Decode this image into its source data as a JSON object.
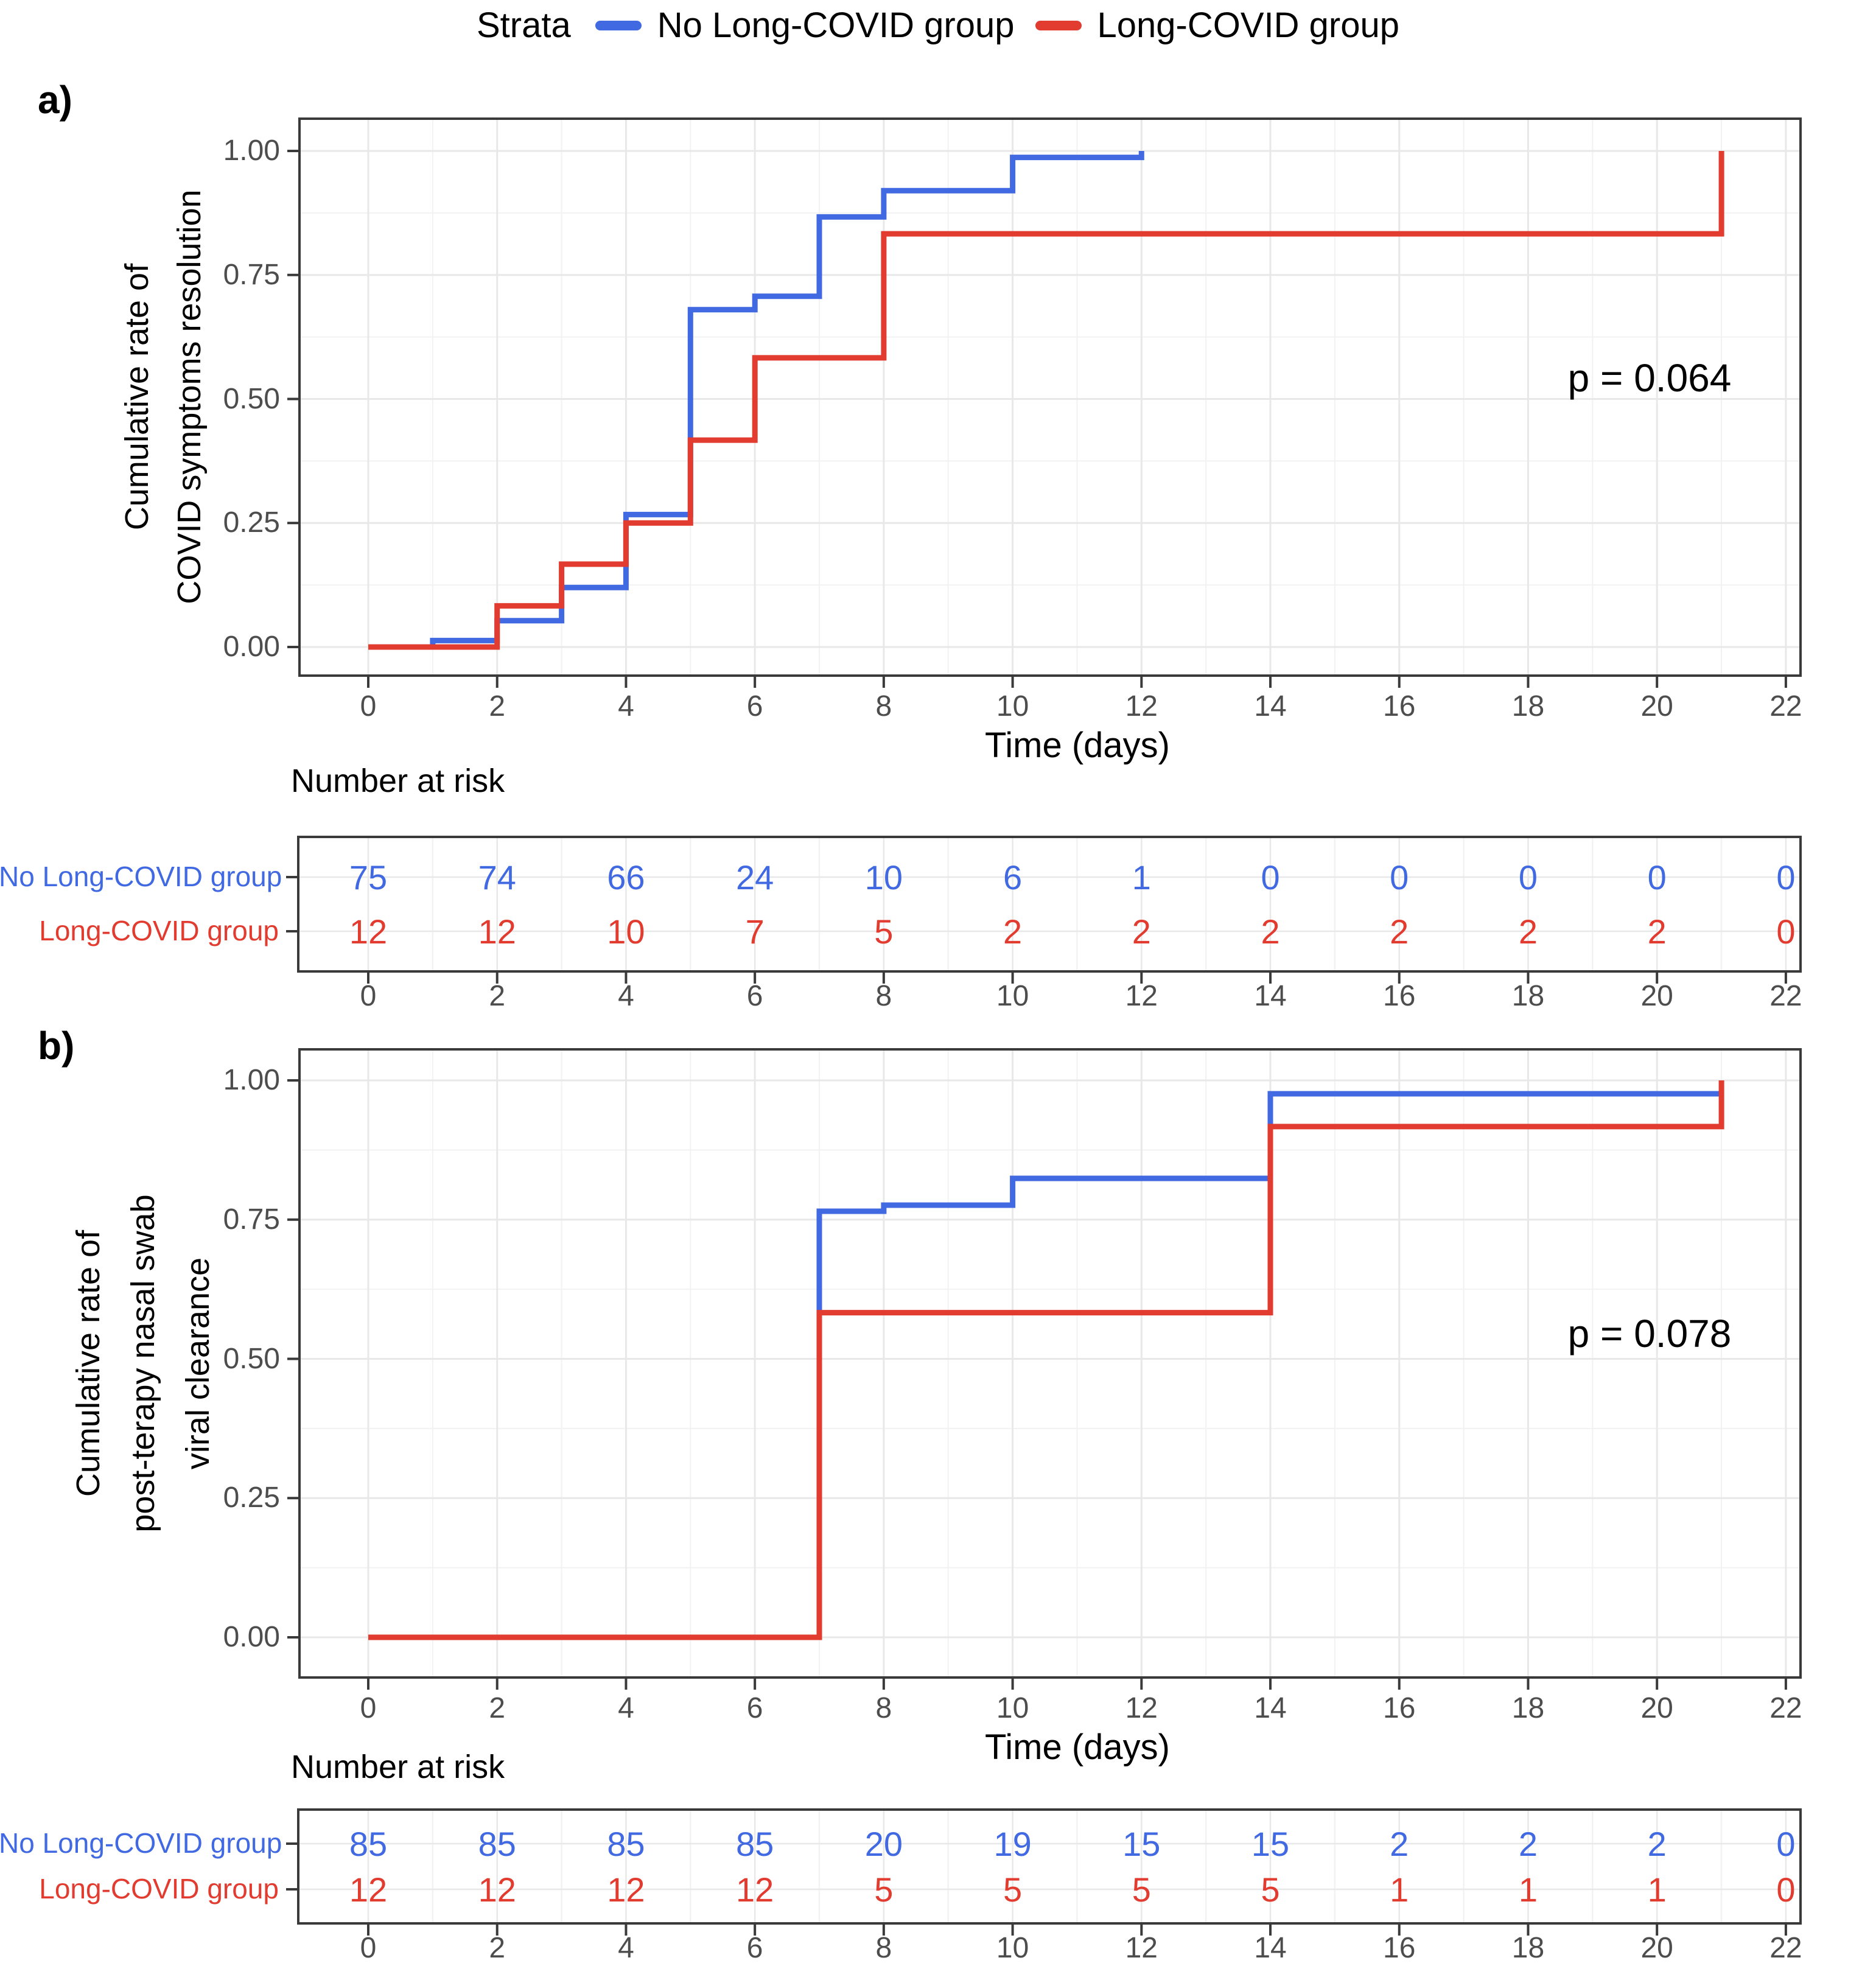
{
  "legend": {
    "title": "Strata",
    "items": [
      {
        "label": "No Long-COVID group",
        "color": "#4169E1"
      },
      {
        "label": "Long-COVID group",
        "color": "#E23B2F"
      }
    ]
  },
  "colors": {
    "blue": "#4169E1",
    "red": "#E23B2F",
    "grid_major": "#E8E8E8",
    "grid_minor": "#F2F2F2",
    "panel_border": "#3A3A3A",
    "tick_text": "#4D4D4D"
  },
  "chart_data": [
    {
      "type": "line",
      "style": "step",
      "panel_label": "a)",
      "ylabel_lines": [
        "Cumulative rate of",
        "COVID symptoms resolution"
      ],
      "xlabel": "Time (days)",
      "p_value": "p = 0.064",
      "xlim": [
        0,
        22
      ],
      "ylim": [
        0,
        1
      ],
      "x_ticks": [
        0,
        2,
        4,
        6,
        8,
        10,
        12,
        14,
        16,
        18,
        20,
        22
      ],
      "y_ticks": [
        {
          "v": 0,
          "label": "0.00"
        },
        {
          "v": 0.25,
          "label": "0.25"
        },
        {
          "v": 0.5,
          "label": "0.50"
        },
        {
          "v": 0.75,
          "label": "0.75"
        },
        {
          "v": 1,
          "label": "1.00"
        }
      ],
      "grid": true,
      "legend_position": "top",
      "series": [
        {
          "name": "No Long-COVID group",
          "color": "#4169E1",
          "points": [
            [
              0,
              0
            ],
            [
              1,
              0.013
            ],
            [
              2,
              0.053
            ],
            [
              3,
              0.12
            ],
            [
              4,
              0.267
            ],
            [
              5,
              0.68
            ],
            [
              6,
              0.707
            ],
            [
              7,
              0.867
            ],
            [
              8,
              0.92
            ],
            [
              10,
              0.987
            ],
            [
              12,
              1.0
            ]
          ]
        },
        {
          "name": "Long-COVID group",
          "color": "#E23B2F",
          "points": [
            [
              0,
              0
            ],
            [
              2,
              0.083
            ],
            [
              3,
              0.167
            ],
            [
              4,
              0.25
            ],
            [
              5,
              0.417
            ],
            [
              6,
              0.583
            ],
            [
              8,
              0.833
            ],
            [
              21,
              1.0
            ]
          ]
        }
      ],
      "risk_table": {
        "title": "Number at risk",
        "x_ticks": [
          0,
          2,
          4,
          6,
          8,
          10,
          12,
          14,
          16,
          18,
          20,
          22
        ],
        "rows": [
          {
            "label": "No Long-COVID group",
            "color": "#4169E1",
            "values": [
              75,
              74,
              66,
              24,
              10,
              6,
              1,
              0,
              0,
              0,
              0,
              0
            ]
          },
          {
            "label": "Long-COVID group",
            "color": "#E23B2F",
            "values": [
              12,
              12,
              10,
              7,
              5,
              2,
              2,
              2,
              2,
              2,
              2,
              0
            ]
          }
        ]
      }
    },
    {
      "type": "line",
      "style": "step",
      "panel_label": "b)",
      "ylabel_lines": [
        "Cumulative rate of",
        "post-terapy nasal swab",
        "viral clearance"
      ],
      "xlabel": "Time (days)",
      "p_value": "p = 0.078",
      "xlim": [
        0,
        22
      ],
      "ylim": [
        0,
        1
      ],
      "x_ticks": [
        0,
        2,
        4,
        6,
        8,
        10,
        12,
        14,
        16,
        18,
        20,
        22
      ],
      "y_ticks": [
        {
          "v": 0,
          "label": "0.00"
        },
        {
          "v": 0.25,
          "label": "0.25"
        },
        {
          "v": 0.5,
          "label": "0.50"
        },
        {
          "v": 0.75,
          "label": "0.75"
        },
        {
          "v": 1,
          "label": "1.00"
        }
      ],
      "grid": true,
      "legend_position": "top",
      "series": [
        {
          "name": "No Long-COVID group",
          "color": "#4169E1",
          "points": [
            [
              0,
              0
            ],
            [
              7,
              0.765
            ],
            [
              8,
              0.776
            ],
            [
              10,
              0.824
            ],
            [
              14,
              0.976
            ],
            [
              21,
              0.976
            ]
          ]
        },
        {
          "name": "Long-COVID group",
          "color": "#E23B2F",
          "points": [
            [
              0,
              0
            ],
            [
              7,
              0.583
            ],
            [
              14,
              0.917
            ],
            [
              21,
              1.0
            ]
          ]
        }
      ],
      "risk_table": {
        "title": "Number at risk",
        "x_ticks": [
          0,
          2,
          4,
          6,
          8,
          10,
          12,
          14,
          16,
          18,
          20,
          22
        ],
        "rows": [
          {
            "label": "No Long-COVID group",
            "color": "#4169E1",
            "values": [
              85,
              85,
              85,
              85,
              20,
              19,
              15,
              15,
              2,
              2,
              2,
              0
            ]
          },
          {
            "label": "Long-COVID group",
            "color": "#E23B2F",
            "values": [
              12,
              12,
              12,
              12,
              5,
              5,
              5,
              5,
              1,
              1,
              1,
              0
            ]
          }
        ]
      }
    }
  ]
}
